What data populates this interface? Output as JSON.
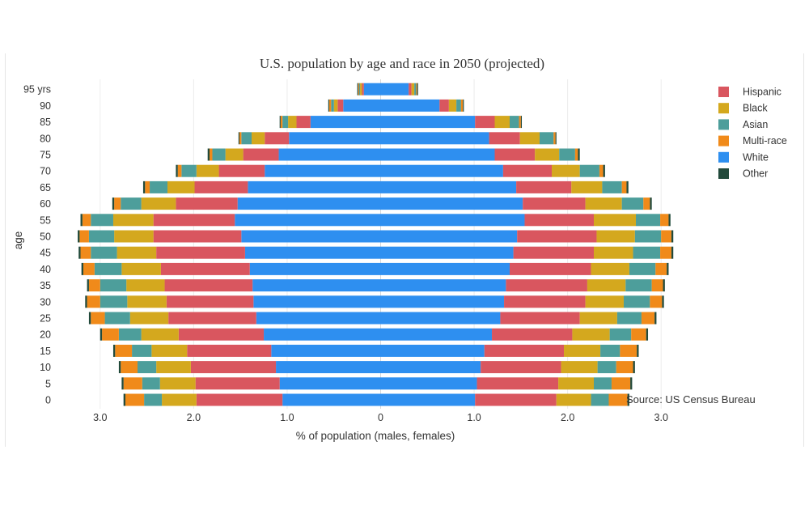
{
  "chart_data": {
    "type": "bar",
    "orientation": "horizontal",
    "layout": "population-pyramid",
    "stacked": true,
    "title": "U.S. population by age and race in 2050 (projected)",
    "xlabel": "% of population (males, females)",
    "ylabel": "age",
    "xlim": [
      -3.5,
      3.5
    ],
    "x_ticks": [
      -3,
      -2,
      -1,
      0,
      1,
      2,
      3
    ],
    "x_tick_labels": [
      "3.0",
      "2.0",
      "1.0",
      "0",
      "1.0",
      "2.0",
      "3.0"
    ],
    "categories": [
      "0",
      "5",
      "10",
      "15",
      "20",
      "25",
      "30",
      "35",
      "40",
      "45",
      "50",
      "55",
      "60",
      "65",
      "70",
      "75",
      "80",
      "85",
      "90",
      "95 yrs"
    ],
    "grid": true,
    "legend_position": "top-right",
    "annotation": "Source: US Census Bureau",
    "series": [
      {
        "name": "White",
        "color": "#2e8ff0",
        "male": [
          -1.05,
          -1.08,
          -1.12,
          -1.17,
          -1.25,
          -1.33,
          -1.36,
          -1.37,
          -1.4,
          -1.45,
          -1.49,
          -1.56,
          -1.53,
          -1.42,
          -1.24,
          -1.09,
          -0.98,
          -0.75,
          -0.4,
          -0.18
        ],
        "female": [
          1.01,
          1.03,
          1.07,
          1.11,
          1.19,
          1.28,
          1.32,
          1.34,
          1.38,
          1.42,
          1.46,
          1.54,
          1.52,
          1.45,
          1.31,
          1.22,
          1.16,
          1.01,
          0.63,
          0.3
        ]
      },
      {
        "name": "Hispanic",
        "color": "#d9565f",
        "male": [
          -0.92,
          -0.9,
          -0.91,
          -0.9,
          -0.91,
          -0.94,
          -0.93,
          -0.94,
          -0.95,
          -0.95,
          -0.94,
          -0.87,
          -0.66,
          -0.57,
          -0.49,
          -0.38,
          -0.26,
          -0.15,
          -0.06,
          -0.02
        ],
        "female": [
          0.87,
          0.87,
          0.86,
          0.85,
          0.86,
          0.85,
          0.87,
          0.87,
          0.87,
          0.86,
          0.85,
          0.74,
          0.67,
          0.59,
          0.52,
          0.43,
          0.33,
          0.21,
          0.1,
          0.03
        ]
      },
      {
        "name": "Black",
        "color": "#d4a81e",
        "male": [
          -0.37,
          -0.38,
          -0.37,
          -0.38,
          -0.4,
          -0.41,
          -0.42,
          -0.41,
          -0.42,
          -0.42,
          -0.42,
          -0.43,
          -0.37,
          -0.29,
          -0.24,
          -0.19,
          -0.14,
          -0.09,
          -0.04,
          -0.02
        ],
        "female": [
          0.37,
          0.38,
          0.39,
          0.39,
          0.4,
          0.4,
          0.41,
          0.41,
          0.41,
          0.42,
          0.41,
          0.45,
          0.39,
          0.33,
          0.3,
          0.26,
          0.21,
          0.16,
          0.08,
          0.03
        ]
      },
      {
        "name": "Asian",
        "color": "#4d9e9b",
        "male": [
          -0.19,
          -0.19,
          -0.2,
          -0.21,
          -0.24,
          -0.27,
          -0.29,
          -0.28,
          -0.29,
          -0.28,
          -0.27,
          -0.24,
          -0.22,
          -0.19,
          -0.16,
          -0.14,
          -0.11,
          -0.06,
          -0.03,
          -0.01
        ],
        "female": [
          0.19,
          0.19,
          0.2,
          0.21,
          0.23,
          0.26,
          0.28,
          0.28,
          0.28,
          0.29,
          0.28,
          0.26,
          0.23,
          0.21,
          0.21,
          0.17,
          0.15,
          0.1,
          0.05,
          0.02
        ]
      },
      {
        "name": "Multi-race",
        "color": "#f08a1a",
        "male": [
          -0.2,
          -0.2,
          -0.18,
          -0.18,
          -0.18,
          -0.15,
          -0.14,
          -0.12,
          -0.12,
          -0.11,
          -0.1,
          -0.09,
          -0.07,
          -0.05,
          -0.04,
          -0.03,
          -0.02,
          -0.02,
          -0.02,
          -0.01
        ],
        "female": [
          0.2,
          0.2,
          0.18,
          0.18,
          0.16,
          0.14,
          0.13,
          0.12,
          0.12,
          0.12,
          0.11,
          0.09,
          0.07,
          0.05,
          0.04,
          0.03,
          0.02,
          0.02,
          0.02,
          0.01
        ]
      },
      {
        "name": "Other",
        "color": "#224a3b",
        "male": [
          -0.02,
          -0.02,
          -0.02,
          -0.02,
          -0.02,
          -0.02,
          -0.02,
          -0.02,
          -0.02,
          -0.02,
          -0.02,
          -0.02,
          -0.02,
          -0.02,
          -0.02,
          -0.02,
          -0.01,
          -0.01,
          -0.01,
          -0.01
        ],
        "female": [
          0.02,
          0.02,
          0.02,
          0.02,
          0.02,
          0.02,
          0.02,
          0.02,
          0.02,
          0.02,
          0.02,
          0.02,
          0.02,
          0.02,
          0.02,
          0.02,
          0.01,
          0.01,
          0.01,
          0.01
        ]
      }
    ],
    "legend_order": [
      "Hispanic",
      "Black",
      "Asian",
      "Multi-race",
      "White",
      "Other"
    ]
  }
}
